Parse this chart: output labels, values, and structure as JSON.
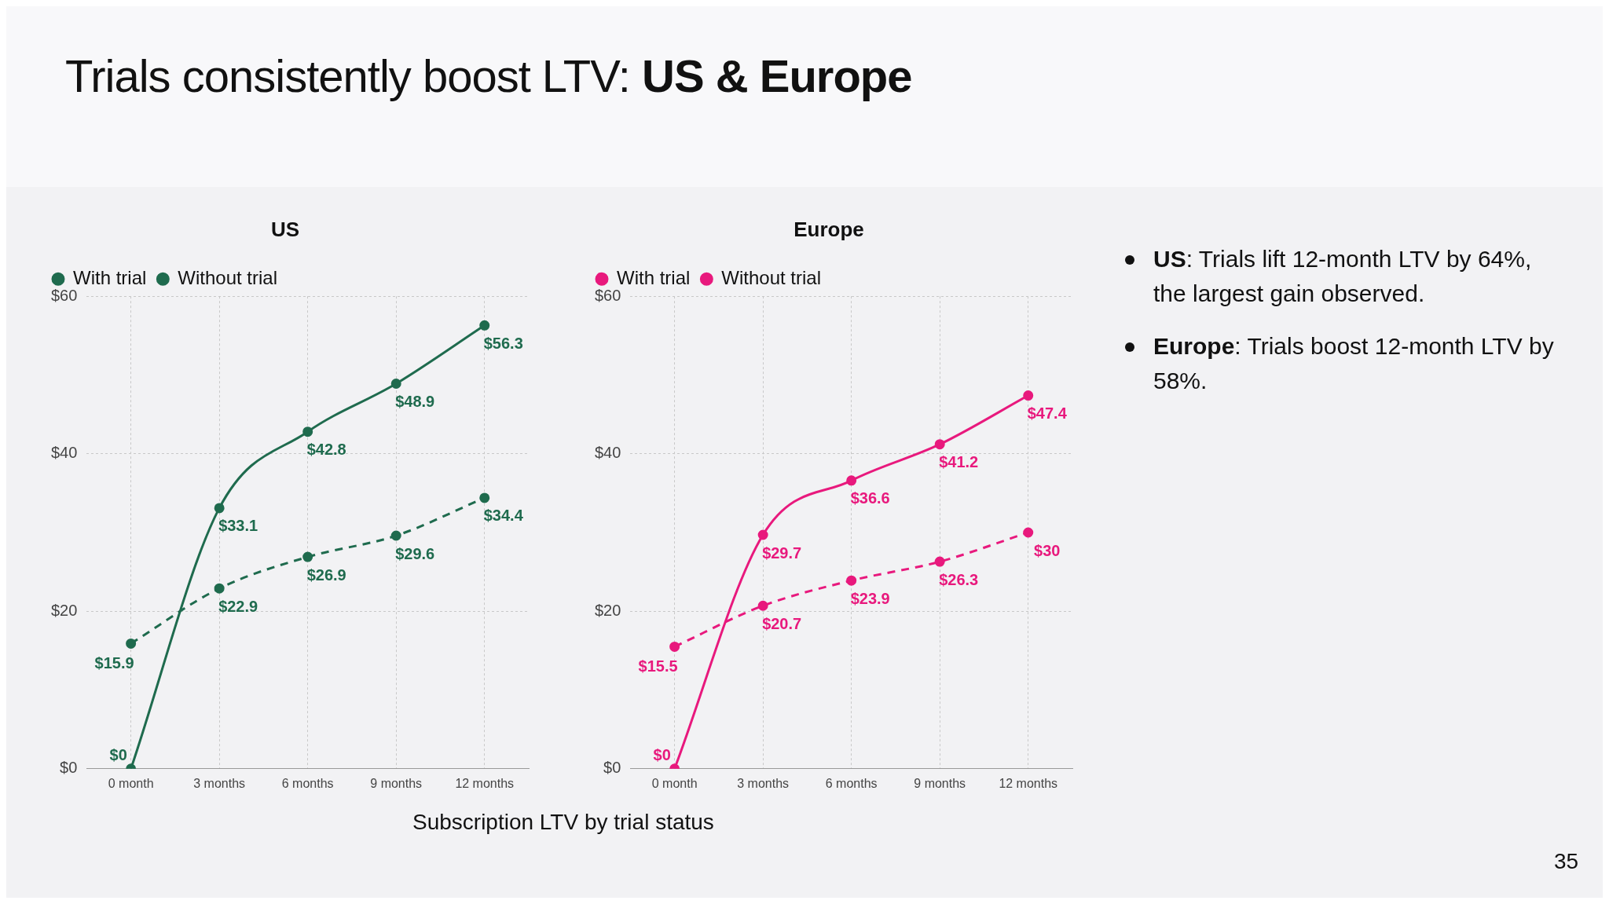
{
  "chart_data": [
    {
      "type": "line",
      "title": "US",
      "categories": [
        "0 month",
        "3 months",
        "6 months",
        "9 months",
        "12 months"
      ],
      "series": [
        {
          "name": "With trial",
          "color": "#1f6b4e",
          "line_style": "solid",
          "values": [
            0,
            33.1,
            42.8,
            48.9,
            56.3
          ],
          "value_labels": [
            "$0",
            "$33.1",
            "$42.8",
            "$48.9",
            "$56.3"
          ]
        },
        {
          "name": "Without trial",
          "color": "#1f6b4e",
          "line_style": "dashed",
          "values": [
            15.9,
            22.9,
            26.9,
            29.6,
            34.4
          ],
          "value_labels": [
            "$15.9",
            "$22.9",
            "$26.9",
            "$29.6",
            "$34.4"
          ]
        }
      ],
      "ylim": [
        0,
        60
      ],
      "yticks": [
        {
          "value": 0,
          "label": "$0"
        },
        {
          "value": 20,
          "label": "$20"
        },
        {
          "value": 40,
          "label": "$40"
        },
        {
          "value": 60,
          "label": "$60"
        }
      ],
      "grid": true,
      "legend": "top left",
      "marker": "circle"
    },
    {
      "type": "line",
      "title": "Europe",
      "categories": [
        "0 month",
        "3 months",
        "6 months",
        "9 months",
        "12 months"
      ],
      "series": [
        {
          "name": "With trial",
          "color": "#e8197d",
          "line_style": "solid",
          "values": [
            0,
            29.7,
            36.6,
            41.2,
            47.4
          ],
          "value_labels": [
            "$0",
            "$29.7",
            "$36.6",
            "$41.2",
            "$47.4"
          ]
        },
        {
          "name": "Without trial",
          "color": "#e8197d",
          "line_style": "dashed",
          "values": [
            15.5,
            20.7,
            23.9,
            26.3,
            30
          ],
          "value_labels": [
            "$15.5",
            "$20.7",
            "$23.9",
            "$26.3",
            "$30"
          ]
        }
      ],
      "ylim": [
        0,
        60
      ],
      "yticks": [
        {
          "value": 0,
          "label": "$0"
        },
        {
          "value": 20,
          "label": "$20"
        },
        {
          "value": 40,
          "label": "$40"
        },
        {
          "value": 60,
          "label": "$60"
        }
      ],
      "grid": true,
      "legend": "top left",
      "marker": "circle"
    },
    {
      "type": "other",
      "title": "Trials consistently boost LTV: US & Europe",
      "annotations": [
        "US: Trials lift 12-month LTV by 64%, the largest gain observed.",
        "Europe: Trials boost 12-month LTV by 58%.",
        "Subscription LTV by trial status",
        "35"
      ]
    }
  ]
}
